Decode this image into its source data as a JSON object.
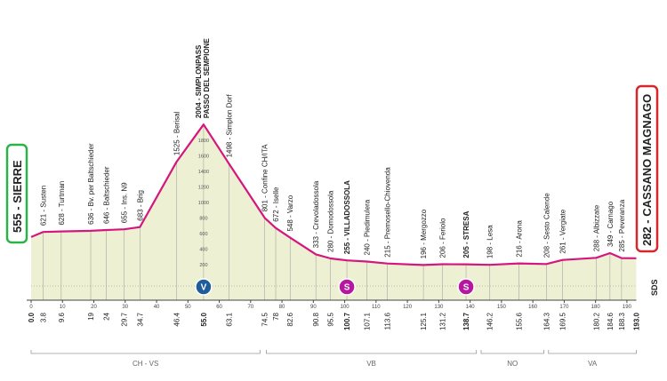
{
  "chart_data": {
    "type": "line",
    "color": "#d4177f",
    "fill": "#eef0d4",
    "start": "555 - SIERRE",
    "finish": "282 - CASSANO MAGNAGO",
    "logo": "SDS",
    "xlim": [
      0,
      193
    ],
    "xticks": [
      0,
      10,
      20,
      30,
      40,
      50,
      60,
      70,
      80,
      90,
      100,
      110,
      120,
      130,
      140,
      150,
      160,
      170,
      180,
      190
    ],
    "ylim": [
      0,
      2200
    ],
    "yticks": [
      200,
      400,
      600,
      800,
      1000,
      1200,
      1400,
      1600,
      1800
    ],
    "waypoints": [
      {
        "label": null,
        "elevation": 555,
        "km": {
          "value": 0,
          "label": "0.0"
        },
        "major": true
      },
      {
        "label": "621 - Susten",
        "elevation": 621,
        "km": 3.8
      },
      {
        "label": "628 - Turtman",
        "elevation": 628,
        "km": 9.6
      },
      {
        "label": "636 - Bv. per Baltschieder",
        "elevation": 636,
        "km": 19.0
      },
      {
        "label": "646 - Baltschieder",
        "elevation": 646,
        "km": 24.0
      },
      {
        "label": "655 - Ins. N9",
        "elevation": 655,
        "km": 29.7
      },
      {
        "label": "683 - Brig",
        "elevation": 683,
        "km": 34.7
      },
      {
        "label": "1525 - Berisal",
        "elevation": 1525,
        "km": 46.4
      },
      {
        "label": "2004 - SIMPLONPASS",
        "label2": "PASSO DEL SEMPIONE",
        "elevation": 2004,
        "km": {
          "value": 55,
          "label": "55.0"
        },
        "major": true
      },
      {
        "label": "1498 - Simplon Dorf",
        "elevation": 1498,
        "km": 63.1
      },
      {
        "label": "801 - Confine CH/ITA",
        "elevation": 801,
        "km": 74.5
      },
      {
        "label": "672 - Iselle",
        "elevation": 672,
        "km": 78.0
      },
      {
        "label": "548 - Varzo",
        "elevation": 548,
        "km": 82.6
      },
      {
        "label": "333 - Crevoladossola",
        "elevation": 333,
        "km": 90.8
      },
      {
        "label": "280 - Domodossola",
        "elevation": 280,
        "km": 95.5
      },
      {
        "label": "255 - VILLADOSSOLA",
        "elevation": 255,
        "km": 100.7,
        "major": true
      },
      {
        "label": "240 - Piedimulera",
        "elevation": 240,
        "km": 107.1
      },
      {
        "label": "215 - Premosello-Chiovenda",
        "elevation": 215,
        "km": 113.6
      },
      {
        "label": "196 - Mergozzo",
        "elevation": 196,
        "km": 125.1
      },
      {
        "label": "206 - Feriolo",
        "elevation": 206,
        "km": 131.2
      },
      {
        "label": "205 - STRESA",
        "elevation": 205,
        "km": 138.7,
        "major": true
      },
      {
        "label": "198 - Lesa",
        "elevation": 198,
        "km": 146.2
      },
      {
        "label": "216 - Arona",
        "elevation": 216,
        "km": 155.6
      },
      {
        "label": "208 - Sesto Calende",
        "elevation": 208,
        "km": 164.3
      },
      {
        "label": "261 - Vergiate",
        "elevation": 261,
        "km": 169.5
      },
      {
        "label": "288 - Albizzate",
        "elevation": 288,
        "km": 180.2
      },
      {
        "label": "349 - Carnago",
        "elevation": 349,
        "km": 184.6
      },
      {
        "label": "285 - Peveranza",
        "elevation": 285,
        "km": 188.3
      },
      {
        "label": null,
        "elevation": 282,
        "km": {
          "value": 193,
          "label": "193.0"
        },
        "major": true
      }
    ],
    "icons": [
      {
        "km": 55,
        "symbol": "V",
        "color": "#1f5c99"
      },
      {
        "km": 100.7,
        "symbol": "S",
        "color": "#b5179e"
      },
      {
        "km": 138.7,
        "symbol": "S",
        "color": "#b5179e"
      }
    ],
    "regions": [
      {
        "name": "CH - VS",
        "from": 0,
        "to": 73
      },
      {
        "name": "VB",
        "from": 75,
        "to": 142
      },
      {
        "name": "NO",
        "from": 143.5,
        "to": 163.5
      },
      {
        "name": "VA",
        "from": 165,
        "to": 193
      }
    ]
  }
}
